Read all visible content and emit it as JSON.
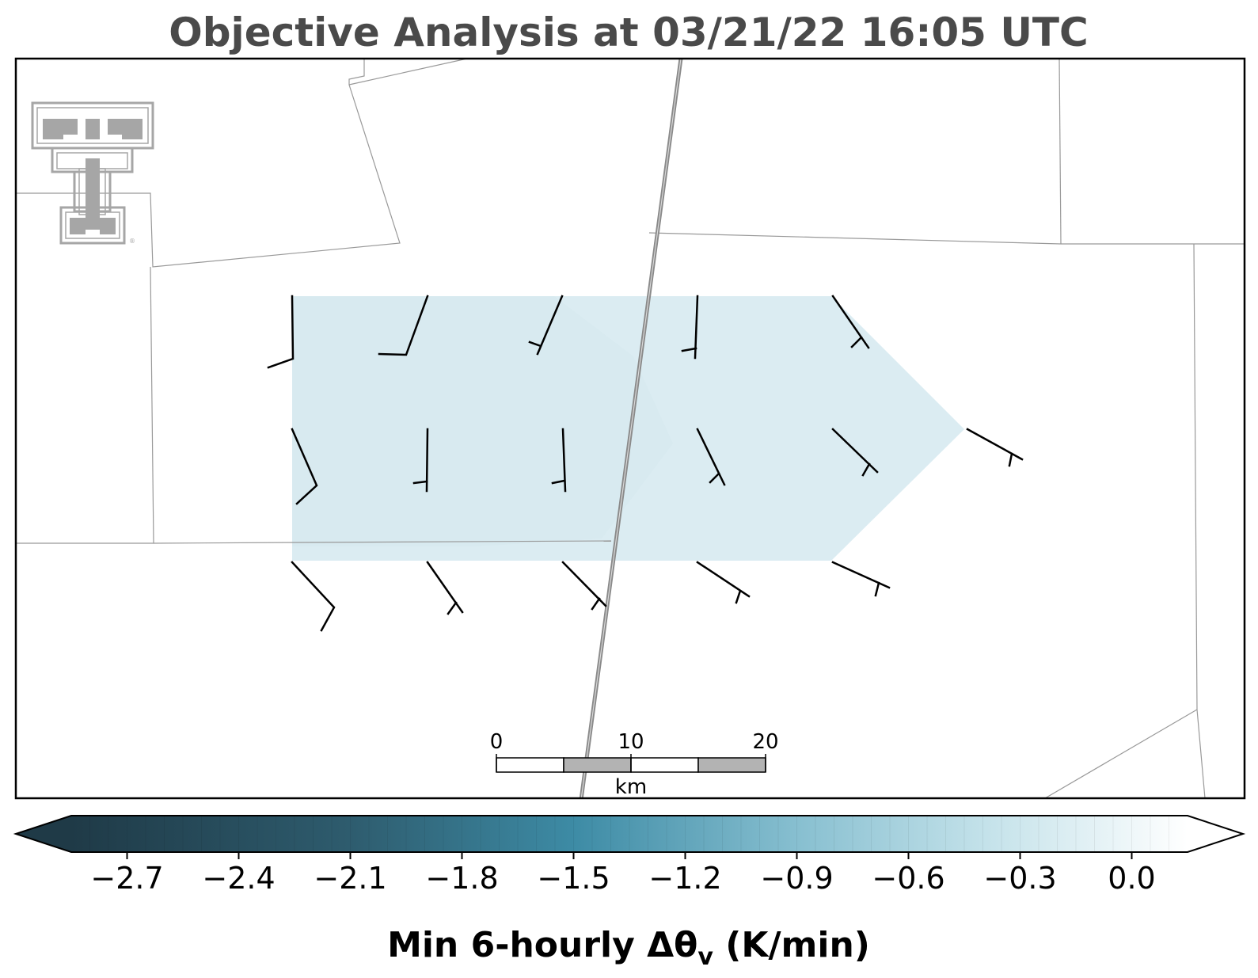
{
  "chart_data": {
    "type": "heatmap",
    "title": "Objective Analysis at 03/21/22 16:05 UTC",
    "colorbar": {
      "label_main": "Min 6-hourly Δθ",
      "label_sub": "v",
      "label_units": " (K/min)",
      "range": [
        -2.85,
        0.15
      ],
      "ticks": [
        -2.7,
        -2.4,
        -2.1,
        -1.8,
        -1.5,
        -1.2,
        -0.9,
        -0.6,
        -0.3,
        0.0
      ],
      "tick_labels": [
        "−2.7",
        "−2.4",
        "−2.1",
        "−1.8",
        "−1.5",
        "−1.2",
        "−0.9",
        "−0.6",
        "−0.3",
        "0.0"
      ],
      "extend": "both",
      "colormap": [
        "#1f3a47",
        "#2e5c6e",
        "#3d8ba5",
        "#87bfd0",
        "#c4e2ea",
        "#ffffff"
      ]
    },
    "analysis_field": {
      "values_range": [
        -0.6,
        -0.5
      ],
      "fill_color": "#d9ebf1"
    },
    "scale_bar": {
      "unit": "km",
      "tick_labels": [
        "0",
        "10",
        "20"
      ],
      "segments": 4,
      "segment_colors": [
        "#ffffff",
        "#b3b3b3",
        "#ffffff",
        "#b3b3b3"
      ]
    },
    "wind_barbs_count": 16,
    "colors": {
      "title": "#4a4a4a",
      "road": "#8a8a8a",
      "county_lines": "#999999",
      "logo": "#a6a6a6"
    },
    "logo": {
      "name": "texas-tech-double-t-logo",
      "registered_mark": "®"
    }
  }
}
